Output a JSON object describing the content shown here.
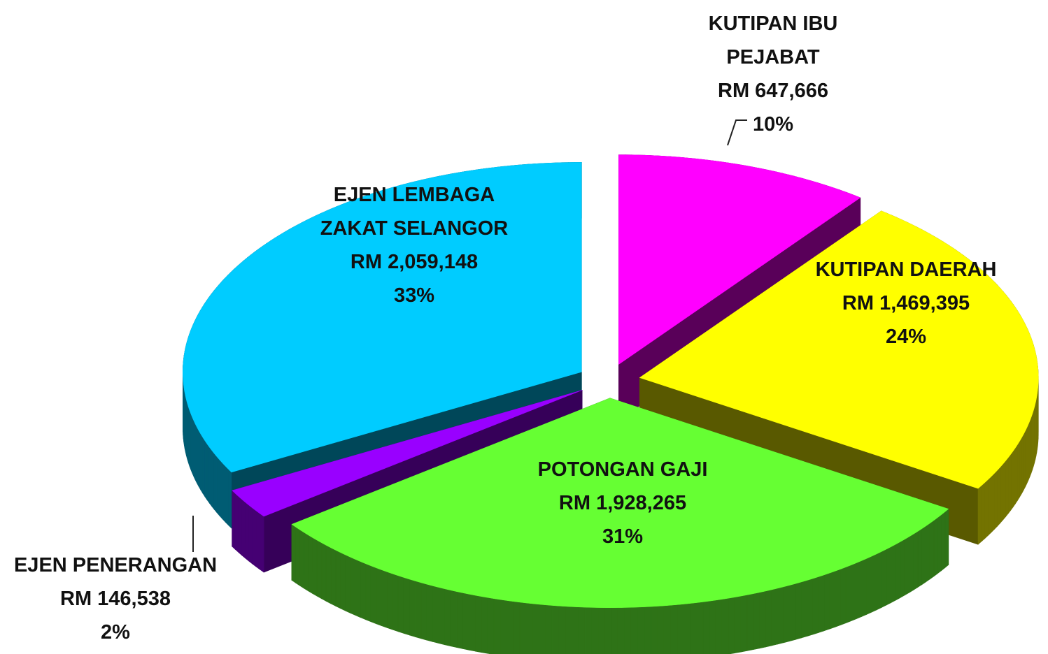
{
  "chart_data": {
    "type": "pie",
    "categories": [
      "KUTIPAN IBU PEJABAT",
      "KUTIPAN DAERAH",
      "POTONGAN GAJI",
      "EJEN PENERANGAN",
      "EJEN LEMBAGA ZAKAT SELANGOR"
    ],
    "values": [
      647666,
      1469395,
      1928265,
      146538,
      2059148
    ],
    "value_labels": [
      "RM 647,666",
      "RM 1,469,395",
      "RM 1,928,265",
      "RM 146,538",
      "RM 2,059,148"
    ],
    "percentages": [
      10,
      24,
      31,
      2,
      33
    ],
    "percentage_labels": [
      "10%",
      "24%",
      "31%",
      "2%",
      "33%"
    ],
    "colors": [
      "#ff00ff",
      "#ffff00",
      "#66ff33",
      "#9900ff",
      "#00ccff"
    ],
    "exploded": true,
    "three_d": true
  }
}
